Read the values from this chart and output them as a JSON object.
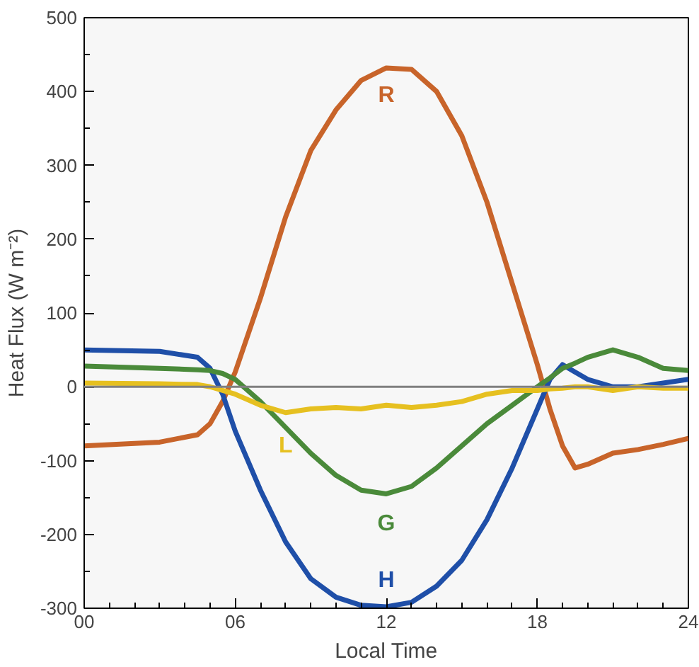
{
  "chart_data": {
    "type": "line",
    "xlabel": "Local Time",
    "ylabel": "Heat Flux (W m⁻²)",
    "x": [
      0,
      3,
      4.5,
      5,
      5.5,
      6,
      7,
      8,
      9,
      10,
      11,
      12,
      13,
      14,
      15,
      16,
      17,
      18,
      18.5,
      19,
      19.5,
      20,
      21,
      22,
      23,
      24
    ],
    "series": [
      {
        "name": "R",
        "color": "#c8642a",
        "values": [
          -80,
          -75,
          -65,
          -50,
          -20,
          20,
          120,
          230,
          320,
          375,
          415,
          432,
          430,
          400,
          340,
          250,
          140,
          30,
          -30,
          -80,
          -110,
          -105,
          -90,
          -85,
          -78,
          -70
        ]
      },
      {
        "name": "H",
        "color": "#1f4fa8",
        "values": [
          50,
          48,
          40,
          25,
          -10,
          -60,
          -140,
          -210,
          -260,
          -285,
          -296,
          -298,
          -292,
          -270,
          -235,
          -180,
          -110,
          -30,
          10,
          30,
          20,
          10,
          0,
          0,
          5,
          10
        ]
      },
      {
        "name": "G",
        "color": "#4a8a3a",
        "values": [
          28,
          25,
          23,
          22,
          18,
          10,
          -20,
          -55,
          -90,
          -120,
          -140,
          -145,
          -135,
          -110,
          -80,
          -50,
          -25,
          0,
          12,
          25,
          32,
          40,
          50,
          40,
          25,
          22
        ]
      },
      {
        "name": "L",
        "color": "#e6c020",
        "values": [
          5,
          4,
          3,
          0,
          -5,
          -10,
          -25,
          -35,
          -30,
          -28,
          -30,
          -25,
          -28,
          -25,
          -20,
          -10,
          -5,
          -5,
          -3,
          -2,
          0,
          0,
          -5,
          0,
          -2,
          -2
        ]
      }
    ],
    "xlim": [
      0,
      24
    ],
    "xticks": [
      {
        "value": 0,
        "label": "00"
      },
      {
        "value": 6,
        "label": "06"
      },
      {
        "value": 12,
        "label": "12"
      },
      {
        "value": 18,
        "label": "18"
      },
      24
    ],
    "ylim": [
      -300,
      500
    ],
    "yticks": [
      -300,
      -200,
      -100,
      0,
      100,
      200,
      300,
      400,
      500
    ],
    "ref_lines": [
      {
        "axis": "y",
        "value": 0,
        "color": "#808080"
      }
    ],
    "grid": false,
    "legend": false,
    "line_style": "solid",
    "marker": "none"
  }
}
